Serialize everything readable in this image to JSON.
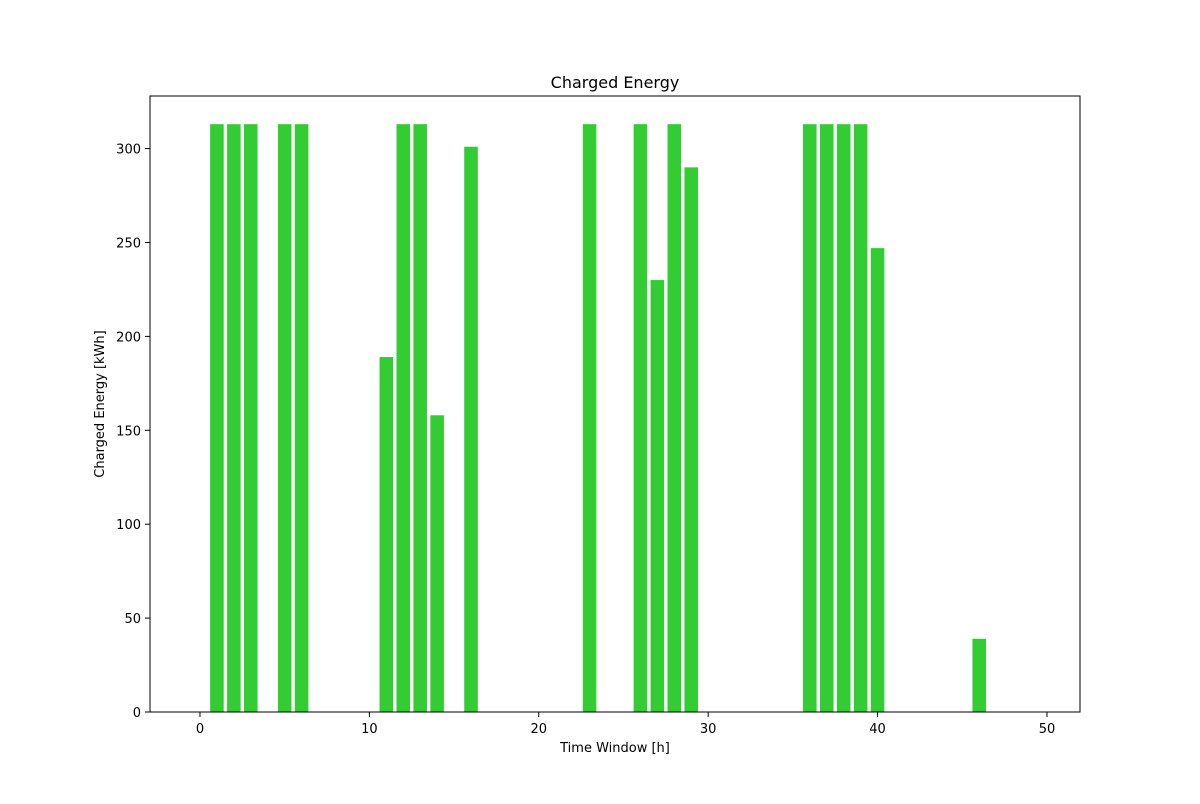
{
  "chart_data": {
    "type": "bar",
    "title": "Charged Energy",
    "xlabel": "Time Window [h]",
    "ylabel": "Charged Energy [kWh]",
    "xlim": [
      -2.95,
      51.95
    ],
    "ylim": [
      0,
      328
    ],
    "xticks": [
      0,
      10,
      20,
      30,
      40,
      50
    ],
    "yticks": [
      0,
      50,
      100,
      150,
      200,
      250,
      300
    ],
    "bar_width": 0.8,
    "bar_color": "#33cc33",
    "grid": false,
    "x": [
      1,
      2,
      3,
      5,
      6,
      11,
      12,
      13,
      14,
      16,
      23,
      26,
      27,
      28,
      29,
      36,
      37,
      38,
      39,
      40,
      46
    ],
    "values": [
      313,
      313,
      313,
      313,
      313,
      189,
      313,
      313,
      158,
      301,
      313,
      313,
      230,
      313,
      290,
      313,
      313,
      313,
      313,
      247,
      39
    ]
  }
}
